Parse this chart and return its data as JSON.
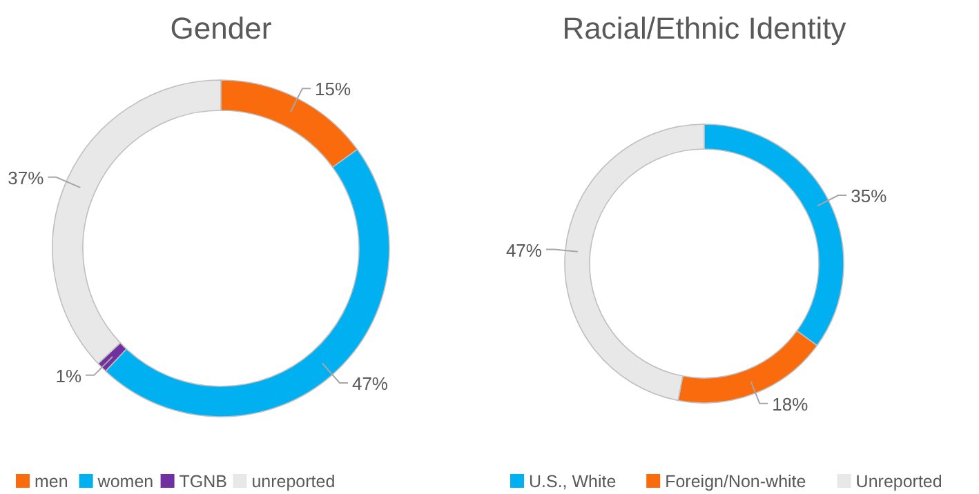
{
  "chart_data": [
    {
      "type": "donut",
      "title": "Gender",
      "categories": [
        "men",
        "women",
        "TGNB",
        "unreported"
      ],
      "values": [
        15,
        47,
        1,
        37
      ],
      "colors": [
        "#f96b0c",
        "#00b0f0",
        "#7030a0",
        "#e8e8e8"
      ],
      "value_labels": [
        "15%",
        "47%",
        "1%",
        "37%"
      ],
      "legend": "bottom"
    },
    {
      "type": "donut",
      "title": "Racial/Ethnic Identity",
      "categories": [
        "U.S., White",
        "Foreign/Non-white",
        "Unreported"
      ],
      "values": [
        35,
        18,
        47
      ],
      "colors": [
        "#00b0f0",
        "#f96b0c",
        "#e8e8e8"
      ],
      "value_labels": [
        "35%",
        "18%",
        "47%"
      ],
      "legend": "bottom"
    }
  ]
}
